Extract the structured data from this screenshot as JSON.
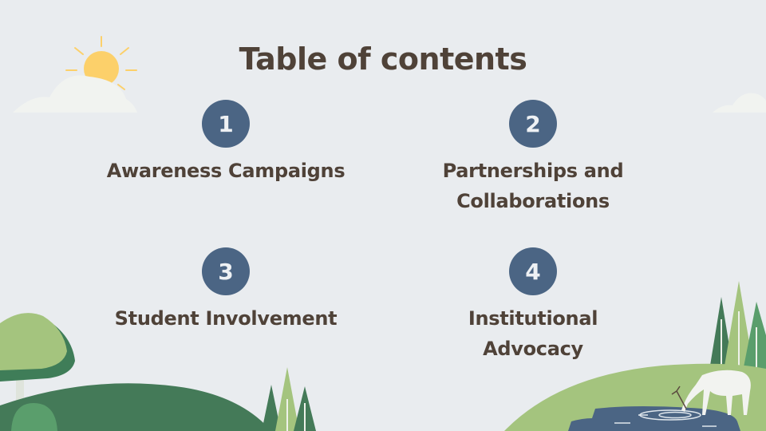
{
  "title": "Table of contents",
  "items": [
    {
      "number": "1",
      "label": "Awareness Campaigns"
    },
    {
      "number": "2",
      "label": "Partnerships and Collaborations"
    },
    {
      "number": "3",
      "label": "Student Involvement"
    },
    {
      "number": "4",
      "label": "Institutional Advocacy"
    }
  ],
  "colors": {
    "background": "#e9ecef",
    "heading": "#4f4238",
    "badge": "#4b6584",
    "sun": "#fcd06a",
    "hill_dark": "#447a58",
    "hill_light": "#a4c47e",
    "water": "#4b6584"
  },
  "icons": [
    "sun-icon",
    "cloud-icon",
    "tree-icon",
    "deer-icon",
    "pond-icon"
  ]
}
